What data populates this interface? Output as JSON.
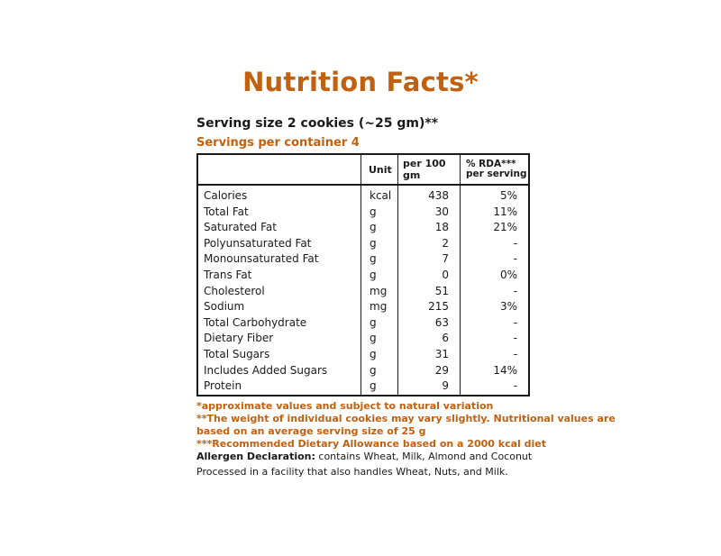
{
  "title": "Nutrition Facts*",
  "serving_size": "Serving size 2 cookies (~25 gm)**",
  "servings_per_container": "Servings per container 4",
  "table": {
    "headers": {
      "unit": "Unit",
      "per100": "per 100 gm",
      "rda_line1": "% RDA***",
      "rda_line2": "per serving"
    },
    "rows": [
      {
        "name": "Calories",
        "unit": "kcal",
        "value": "438",
        "rda": "5%"
      },
      {
        "name": "Total Fat",
        "unit": "g",
        "value": "30",
        "rda": "11%"
      },
      {
        "name": "Saturated Fat",
        "unit": "g",
        "value": "18",
        "rda": "21%"
      },
      {
        "name": "Polyunsaturated Fat",
        "unit": "g",
        "value": "2",
        "rda": "-"
      },
      {
        "name": "Monounsaturated Fat",
        "unit": "g",
        "value": "7",
        "rda": "-"
      },
      {
        "name": "Trans Fat",
        "unit": "g",
        "value": "0",
        "rda": "0%"
      },
      {
        "name": "Cholesterol",
        "unit": "mg",
        "value": "51",
        "rda": "-"
      },
      {
        "name": "Sodium",
        "unit": "mg",
        "value": "215",
        "rda": "3%"
      },
      {
        "name": "Total Carbohydrate",
        "unit": "g",
        "value": "63",
        "rda": "-"
      },
      {
        "name": "Dietary Fiber",
        "unit": "g",
        "value": "6",
        "rda": "-"
      },
      {
        "name": "Total Sugars",
        "unit": "g",
        "value": "31",
        "rda": "-"
      },
      {
        "name": "Includes Added Sugars",
        "unit": "g",
        "value": "29",
        "rda": "14%"
      },
      {
        "name": "Protein",
        "unit": "g",
        "value": "9",
        "rda": "-"
      }
    ]
  },
  "footnotes": {
    "note1": "*approximate values and subject to natural variation",
    "note2a": "**The weight of individual cookies may vary slightly. Nutritional values are",
    "note2b": "based on an average serving size of 25 g",
    "note3": "***Recommended Dietary Allowance based on a 2000 kcal diet"
  },
  "allergen": {
    "label": "Allergen Declaration:",
    "text": " contains Wheat, Milk, Almond and Coconut"
  },
  "processed": "Processed in a facility that also handles Wheat, Nuts, and Milk.",
  "colors": {
    "accent": "#c1600f",
    "text": "#1a1a1a",
    "background": "#ffffff"
  }
}
